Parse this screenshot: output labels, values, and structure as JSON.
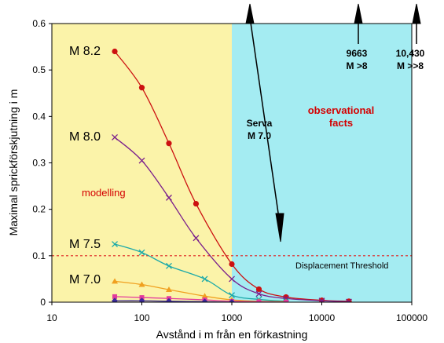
{
  "chart_data": {
    "type": "line",
    "xscale": "log",
    "xlim": [
      10,
      100000
    ],
    "ylim": [
      0,
      0.6
    ],
    "xticks": [
      10,
      100,
      1000,
      10000,
      100000
    ],
    "xtick_labels": [
      "10",
      "100",
      "1000",
      "10000",
      "100000"
    ],
    "yticks": [
      0,
      0.1,
      0.2,
      0.3,
      0.4,
      0.5,
      0.6
    ],
    "ytick_labels": [
      "0",
      "0.1",
      "0.2",
      "0.3",
      "0.4",
      "0.5",
      "0.6"
    ],
    "xlabel": "Avstånd i m från en förkastning",
    "ylabel": "Maximal sprickförskjutning i m",
    "threshold": {
      "y": 0.1,
      "label": "Displacement  Threshold"
    },
    "regions": [
      {
        "label": "modelling",
        "x_from": 10,
        "x_to": 1000,
        "color": "#fbf3a9"
      },
      {
        "label_lines": [
          "observational",
          "facts"
        ],
        "x_from": 1000,
        "x_to": 100000,
        "color": "#a4ecf2"
      }
    ],
    "series": [
      {
        "name": "M 8.2",
        "color": "#cc1111",
        "marker": "circle",
        "x": [
          50,
          100,
          200,
          400,
          1000,
          2000,
          4000,
          10000,
          20000
        ],
        "y": [
          0.54,
          0.462,
          0.342,
          0.212,
          0.082,
          0.028,
          0.011,
          0.004,
          0.002
        ]
      },
      {
        "name": "M 8.0",
        "color": "#7a1e8c",
        "marker": "x",
        "x": [
          50,
          100,
          200,
          400,
          1000,
          2000,
          4000,
          10000,
          20000
        ],
        "y": [
          0.355,
          0.305,
          0.225,
          0.138,
          0.05,
          0.018,
          0.008,
          0.003,
          0.001
        ]
      },
      {
        "name": "M 7.5",
        "color": "#1ba9a9",
        "marker": "x",
        "x": [
          50,
          100,
          200,
          500,
          1000,
          2000,
          4000
        ],
        "y": [
          0.125,
          0.107,
          0.078,
          0.05,
          0.015,
          0.006,
          0.002
        ]
      },
      {
        "name": "M 7.0",
        "color": "#f0a020",
        "marker": "triangle",
        "x": [
          50,
          100,
          200,
          500,
          1000,
          2000,
          4000
        ],
        "y": [
          0.045,
          0.038,
          0.027,
          0.013,
          0.005,
          0.002,
          0.001
        ]
      },
      {
        "name": "",
        "color": "#e33b9c",
        "marker": "square",
        "x": [
          50,
          100,
          200,
          500,
          1000,
          2000,
          4000
        ],
        "y": [
          0.012,
          0.01,
          0.008,
          0.005,
          0.002,
          0.001,
          0.0
        ]
      },
      {
        "name": "",
        "color": "#3a2a9a",
        "marker": "diamond",
        "x": [
          50,
          100,
          200,
          500,
          1000
        ],
        "y": [
          0.003,
          0.003,
          0.002,
          0.001,
          0.0
        ]
      }
    ],
    "observations": [
      {
        "label_lines": [
          "Serva",
          "M 7.0"
        ]
      },
      {
        "label_lines": [
          "9663",
          "M >8"
        ]
      },
      {
        "label_lines": [
          "10,430",
          "M >>8"
        ]
      }
    ]
  }
}
